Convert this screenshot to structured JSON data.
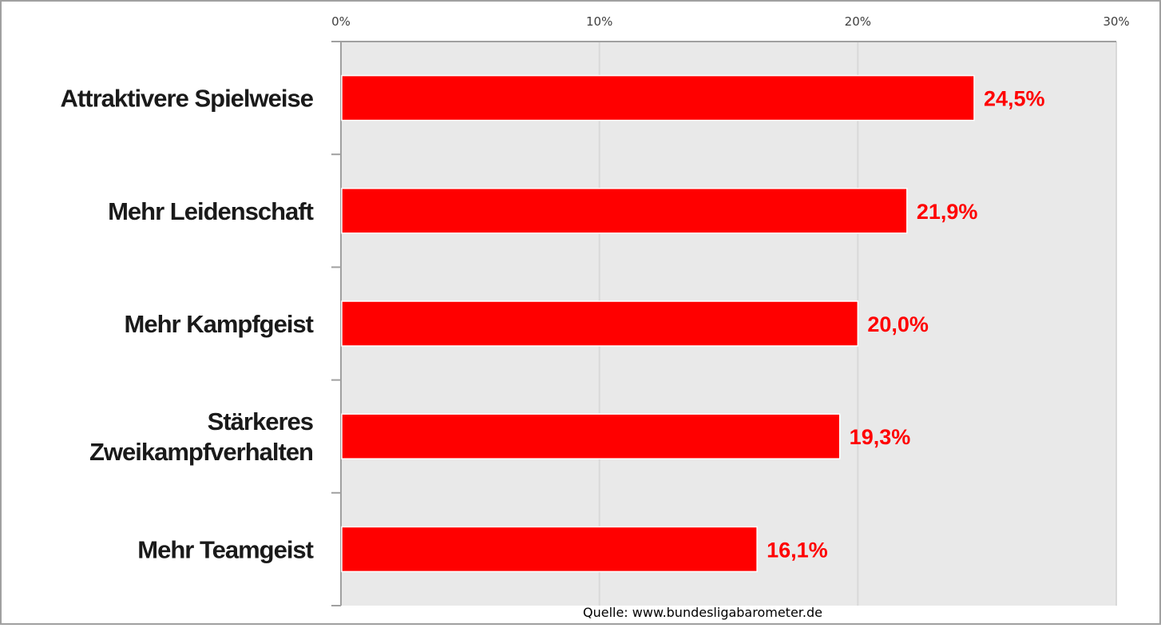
{
  "chart_data": {
    "type": "bar",
    "orientation": "horizontal",
    "categories": [
      "Attraktivere Spielweise",
      "Mehr Leidenschaft",
      "Mehr Kampfgeist",
      "Stärkeres Zweikampfverhalten",
      "Mehr Teamgeist"
    ],
    "category_lines": [
      [
        "Attraktivere Spielweise"
      ],
      [
        "Mehr Leidenschaft"
      ],
      [
        "Mehr Kampfgeist"
      ],
      [
        "Stärkeres",
        "Zweikampfverhalten"
      ],
      [
        "Mehr Teamgeist"
      ]
    ],
    "values": [
      24.5,
      21.9,
      20.0,
      19.3,
      16.1
    ],
    "data_labels": [
      "24,5%",
      "21,9%",
      "20,0%",
      "19,3%",
      "16,1%"
    ],
    "xlim": [
      0,
      30
    ],
    "x_ticks": [
      0,
      10,
      20,
      30
    ],
    "x_tick_labels": [
      "0%",
      "10%",
      "20%",
      "30%"
    ],
    "x_axis_position": "top",
    "grid": true,
    "legend": "none",
    "colors": {
      "bar": "#ff0000",
      "label": "#ff0000",
      "plot_background": "#e9e9e9",
      "grid": "#d9d9d9"
    },
    "source": "Quelle: www.bundesligabarometer.de"
  }
}
